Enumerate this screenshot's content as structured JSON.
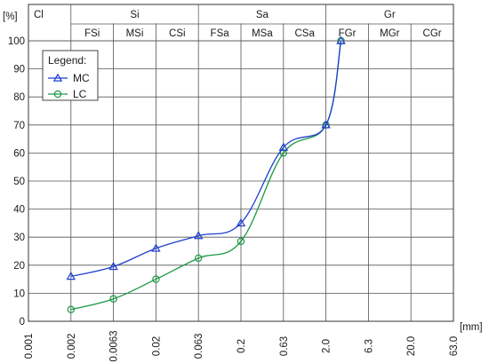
{
  "chart_data": {
    "type": "line",
    "ylabel": "[%]",
    "xlabel": "[mm]",
    "x_ticks": [
      "0.001",
      "0.002",
      "0.0063",
      "0.02",
      "0.063",
      "0.2",
      "0.63",
      "2.0",
      "6.3",
      "20.0",
      "63.0"
    ],
    "ylim": [
      0,
      100
    ],
    "y_ticks": [
      0,
      10,
      20,
      30,
      40,
      50,
      60,
      70,
      80,
      90,
      100
    ],
    "grid": true,
    "legend": {
      "title": "Legend:",
      "position": "top-left"
    },
    "soil_classes": {
      "groups": [
        {
          "label": "Cl",
          "from": "0.001",
          "to": "0.002"
        },
        {
          "label": "Si",
          "from": "0.002",
          "to": "0.063"
        },
        {
          "label": "Sa",
          "from": "0.063",
          "to": "2.0"
        },
        {
          "label": "Gr",
          "from": "2.0",
          "to": "63.0"
        }
      ],
      "subgroups": [
        {
          "label": "FSi",
          "from": "0.002",
          "to": "0.0063"
        },
        {
          "label": "MSi",
          "from": "0.0063",
          "to": "0.02"
        },
        {
          "label": "CSi",
          "from": "0.02",
          "to": "0.063"
        },
        {
          "label": "FSa",
          "from": "0.063",
          "to": "0.2"
        },
        {
          "label": "MSa",
          "from": "0.2",
          "to": "0.63"
        },
        {
          "label": "CSa",
          "from": "0.63",
          "to": "2.0"
        },
        {
          "label": "FGr",
          "from": "2.0",
          "to": "6.3"
        },
        {
          "label": "MGr",
          "from": "6.3",
          "to": "20.0"
        },
        {
          "label": "CGr",
          "from": "20.0",
          "to": "63.0"
        }
      ]
    },
    "series": [
      {
        "name": "MC",
        "color": "#1f3fcf",
        "marker": "triangle",
        "points": [
          {
            "x": 0.002,
            "y": 16
          },
          {
            "x": 0.0063,
            "y": 19.5
          },
          {
            "x": 0.02,
            "y": 26
          },
          {
            "x": 0.063,
            "y": 30.5
          },
          {
            "x": 0.2,
            "y": 35
          },
          {
            "x": 0.63,
            "y": 62
          },
          {
            "x": 2.0,
            "y": 70
          },
          {
            "x": 3.0,
            "y": 100
          }
        ]
      },
      {
        "name": "LC",
        "color": "#1a9a45",
        "marker": "circle",
        "points": [
          {
            "x": 0.002,
            "y": 4.2
          },
          {
            "x": 0.0063,
            "y": 8
          },
          {
            "x": 0.02,
            "y": 15
          },
          {
            "x": 0.063,
            "y": 22.5
          },
          {
            "x": 0.2,
            "y": 28.5
          },
          {
            "x": 0.63,
            "y": 60
          },
          {
            "x": 2.0,
            "y": 70
          },
          {
            "x": 3.0,
            "y": 100
          }
        ]
      }
    ]
  }
}
